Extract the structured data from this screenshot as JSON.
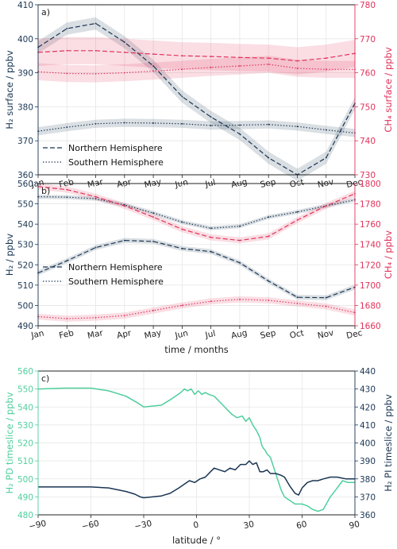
{
  "colors": {
    "h2": "#1a3553",
    "ch4": "#e0325a",
    "h2_pd": "#4fcf9d",
    "h2_pi": "#1a3553",
    "grid": "#e6e6e6"
  },
  "chart_data": [
    {
      "type": "line",
      "panel": "a)",
      "xlabel": "",
      "ylabel_left": "H₂ surface / ppbv",
      "ylabel_right": "CH₄ surface / ppbv",
      "categories": [
        "Jan",
        "Feb",
        "Mar",
        "Apr",
        "May",
        "Jun",
        "Jul",
        "Aug",
        "Sep",
        "Oct",
        "Nov",
        "Dec"
      ],
      "ylim_left": [
        360,
        410
      ],
      "ylim_right": [
        730,
        780
      ],
      "yticks_left": [
        360,
        370,
        380,
        390,
        400,
        410
      ],
      "yticks_right": [
        730,
        740,
        750,
        760,
        770,
        780
      ],
      "legend": {
        "position": "center-left",
        "entries": [
          {
            "style": "dashed",
            "label": "Northern Hemisphere"
          },
          {
            "style": "dotted",
            "label": "Southern Hemisphere"
          }
        ]
      },
      "series": [
        {
          "axis": "left",
          "color": "#1a3553",
          "style": "dashed",
          "values": [
            397.5,
            403,
            404.5,
            399,
            392,
            383,
            377,
            372,
            365,
            360,
            365,
            381
          ],
          "band": 1.8
        },
        {
          "axis": "left",
          "color": "#1a3553",
          "style": "dotted",
          "values": [
            372.8,
            374,
            375,
            375.3,
            375.2,
            375,
            374.5,
            374.6,
            374.8,
            374.2,
            373.2,
            372.3
          ],
          "band": 1.2
        },
        {
          "axis": "right",
          "color": "#e0325a",
          "style": "dashed",
          "values": [
            766,
            766.5,
            766.5,
            766,
            765.5,
            765,
            764.8,
            764.5,
            764.3,
            763.5,
            764.3,
            765.7
          ],
          "band": 4
        },
        {
          "axis": "right",
          "color": "#e0325a",
          "style": "dotted",
          "values": [
            760.3,
            759.8,
            759.7,
            760,
            760.5,
            761,
            761.6,
            762,
            762.5,
            761.3,
            761,
            761
          ],
          "band": 2.5
        }
      ]
    },
    {
      "type": "line",
      "panel": "b)",
      "xlabel": "time / months",
      "ylabel_left": "H₂ / ppbv",
      "ylabel_right": "CH₄ / ppbv",
      "categories": [
        "Jan",
        "Feb",
        "Mar",
        "Apr",
        "May",
        "Jun",
        "Jul",
        "Aug",
        "Sep",
        "Oct",
        "Nov",
        "Dec"
      ],
      "ylim_left": [
        490,
        560
      ],
      "ylim_right": [
        1660,
        1800
      ],
      "yticks_left": [
        490,
        500,
        510,
        520,
        530,
        540,
        550,
        560
      ],
      "yticks_right": [
        1660,
        1680,
        1700,
        1720,
        1740,
        1760,
        1780,
        1800
      ],
      "legend": {
        "position": "center-left",
        "entries": [
          {
            "style": "dashed",
            "label": "Northern Hemisphere"
          },
          {
            "style": "dotted",
            "label": "Southern Hemisphere"
          }
        ]
      },
      "series": [
        {
          "axis": "left",
          "color": "#1a3553",
          "style": "dashed",
          "values": [
            516,
            522,
            528.5,
            532,
            531.5,
            528,
            526.5,
            521,
            512,
            504,
            503.8,
            509
          ],
          "band": 1.2
        },
        {
          "axis": "left",
          "color": "#1a3553",
          "style": "dotted",
          "values": [
            553.5,
            553.3,
            552.5,
            549.5,
            545.5,
            541,
            538,
            539,
            543.5,
            546,
            549,
            552
          ],
          "band": 1
        },
        {
          "axis": "right",
          "color": "#e0325a",
          "style": "dashed",
          "values": [
            1797,
            1794,
            1787,
            1778,
            1767,
            1755,
            1747,
            1744,
            1748,
            1764,
            1778,
            1790
          ],
          "band": 3
        },
        {
          "axis": "right",
          "color": "#e0325a",
          "style": "dotted",
          "values": [
            1669,
            1667,
            1668,
            1670,
            1675,
            1680,
            1684,
            1686,
            1685,
            1682,
            1679,
            1673
          ],
          "band": 3
        }
      ]
    },
    {
      "type": "line",
      "panel": "c)",
      "xlabel": "latitude / °",
      "ylabel_left": "H₂ PD timeslice / ppbv",
      "ylabel_right": "H₂ PI timeslice / ppbv",
      "xlim": [
        -90,
        90
      ],
      "xticks": [
        -90,
        -60,
        -30,
        0,
        30,
        60,
        90
      ],
      "xtick_labels": [
        "−90",
        "−60",
        "−30",
        "0",
        "30",
        "60",
        "90"
      ],
      "ylim_left": [
        480,
        560
      ],
      "ylim_right": [
        360,
        440
      ],
      "yticks_left": [
        480,
        490,
        500,
        510,
        520,
        530,
        540,
        550,
        560
      ],
      "yticks_right": [
        360,
        370,
        380,
        390,
        400,
        410,
        420,
        430,
        440
      ],
      "series": [
        {
          "axis": "left",
          "color": "#4fcf9d",
          "x": [
            -90,
            -75,
            -60,
            -50,
            -40,
            -33,
            -30,
            -25,
            -20,
            -15,
            -12,
            -9,
            -7,
            -5,
            -3,
            -1,
            1,
            3,
            5,
            7,
            10,
            15,
            18,
            20,
            23,
            26,
            28,
            30,
            32,
            34,
            36,
            37,
            38,
            39,
            40,
            42,
            44,
            46,
            48,
            50,
            53,
            56,
            60,
            63,
            66,
            69,
            72,
            76,
            80,
            83,
            86,
            90
          ],
          "values": [
            550,
            550.5,
            550.5,
            549,
            546,
            542,
            540,
            540.5,
            541,
            544,
            546,
            548,
            550,
            549,
            550,
            547,
            549,
            547,
            548,
            547,
            546,
            541,
            538,
            536,
            534,
            535,
            532,
            534,
            530,
            527,
            523,
            519,
            517,
            516,
            514,
            512,
            506,
            500,
            494,
            490,
            488,
            486,
            486,
            485,
            483,
            482,
            483,
            490,
            495,
            499,
            498,
            498
          ]
        },
        {
          "axis": "right",
          "color": "#1a3553",
          "x": [
            -90,
            -75,
            -60,
            -50,
            -40,
            -35,
            -32,
            -30,
            -25,
            -20,
            -15,
            -10,
            -7,
            -4,
            -1,
            2,
            5,
            8,
            10,
            13,
            16,
            19,
            22,
            25,
            28,
            30,
            32,
            34,
            36,
            38,
            40,
            42,
            45,
            48,
            50,
            53,
            56,
            58,
            60,
            63,
            66,
            69,
            72,
            76,
            80,
            85,
            90
          ],
          "values": [
            375.5,
            375.5,
            375.5,
            375,
            373,
            371.5,
            370,
            369.5,
            370,
            370.5,
            372,
            375,
            377,
            379,
            378,
            380,
            381,
            384,
            386,
            385,
            384,
            386,
            385,
            388,
            388,
            390,
            388,
            389,
            384,
            384,
            385,
            383,
            383,
            382,
            381,
            376,
            372,
            371,
            375,
            378,
            379,
            379,
            380,
            381,
            381,
            380,
            380
          ]
        }
      ]
    }
  ]
}
